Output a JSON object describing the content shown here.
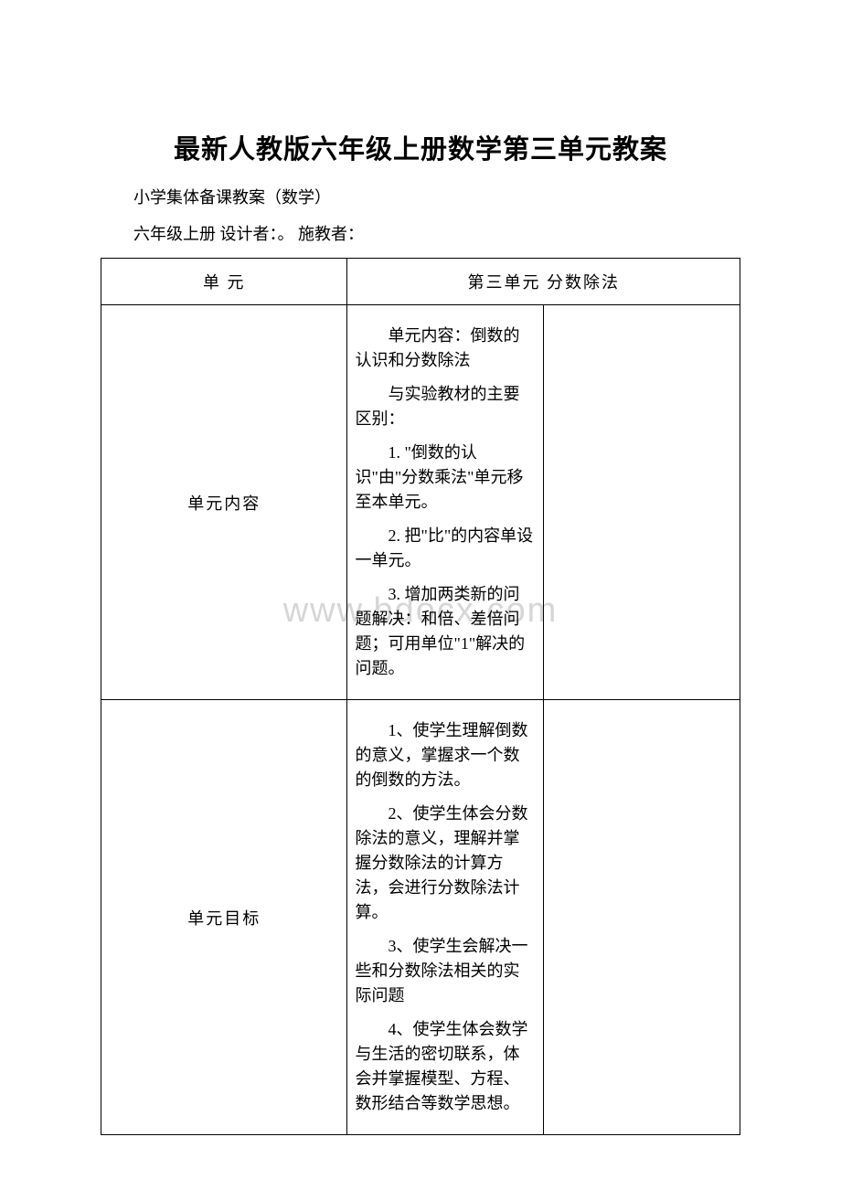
{
  "title": "最新人教版六年级上册数学第三单元教案",
  "subtitle": "小学集体备课教案（数学）",
  "meta_line": "六年级上册 设计者：。 施教者：",
  "watermark": "www.bdocx.com",
  "table": {
    "header": {
      "label": "单 元",
      "content": "第三单元   分数除法"
    },
    "rows": [
      {
        "label": "单元内容",
        "paragraphs": [
          "单元内容：倒数的认识和分数除法",
          "与实验教材的主要区别：",
          "1. \"倒数的认识\"由\"分数乘法\"单元移至本单元。",
          "2. 把\"比\"的内容单设一单元。",
          "3. 增加两类新的问题解决：和倍、差倍问题；可用单位\"1\"解决的问题。"
        ]
      },
      {
        "label": "单元目标",
        "paragraphs": [
          "1、使学生理解倒数的意义，掌握求一个数的倒数的方法。",
          "2、使学生体会分数除法的意义，理解并掌握分数除法的计算方法，会进行分数除法计算。",
          "3、使学生会解决一些和分数除法相关的实际问题",
          "4、使学生体会数学与生活的密切联系，体会并掌握模型、方程、数形结合等数学思想。"
        ]
      }
    ]
  }
}
